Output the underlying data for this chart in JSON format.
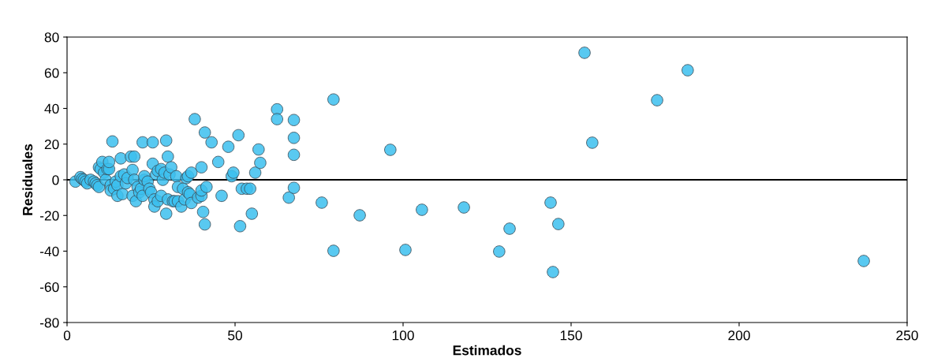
{
  "chart_data": {
    "type": "scatter",
    "xlabel": "Estimados",
    "ylabel": "Residuales",
    "xlim": [
      0,
      250
    ],
    "xticks": [
      0,
      50,
      100,
      150,
      200,
      250
    ],
    "ylim": [
      -80,
      80
    ],
    "yticks": [
      -80,
      -60,
      -40,
      -20,
      0,
      20,
      40,
      60,
      80
    ],
    "grid": false,
    "marker": "circle",
    "ref_lines": [
      {
        "axis": "y",
        "value": 0,
        "color": "#000000"
      }
    ],
    "series": [
      {
        "color": "#3cbfef",
        "x": [
          2.5,
          4,
          4.5,
          5,
          5.5,
          6,
          7,
          8,
          8.5,
          9,
          9.5,
          9.5,
          10,
          10.5,
          11,
          11.5,
          12,
          12.5,
          12.5,
          13,
          13,
          13.5,
          14,
          14.5,
          15,
          15,
          16,
          16,
          16.5,
          17,
          17.5,
          18,
          19,
          19.5,
          19.5,
          20,
          20,
          20.5,
          21,
          21.5,
          22,
          22.5,
          22.5,
          23,
          23,
          24,
          24.5,
          25,
          25.5,
          25.5,
          26,
          26,
          26.5,
          27,
          27,
          28,
          28,
          28.5,
          29,
          29.5,
          29.5,
          30,
          30,
          30.5,
          31,
          31.5,
          32,
          32.5,
          33,
          33,
          34,
          34.5,
          35,
          35.5,
          36,
          36,
          36.5,
          37,
          37,
          38,
          39,
          40,
          40,
          40,
          40.5,
          41,
          41,
          41.5,
          43,
          45,
          46,
          48,
          49,
          49.5,
          51,
          51.5,
          52,
          53.5,
          54.5,
          55,
          56,
          57,
          57.5,
          62.5,
          62.5,
          66,
          67.5,
          67.5,
          67.5,
          67.5,
          75.8,
          79.3,
          79.3,
          87.1,
          96.2,
          100.7,
          105.6,
          118.1,
          128.6,
          131.7,
          143.9,
          144.6,
          146.2,
          154,
          156.3,
          175.6,
          184.7,
          237.1
        ],
        "values": [
          -1,
          1.5,
          0.5,
          0,
          -1,
          -2,
          0,
          -1,
          -2,
          -3,
          -4,
          7,
          6,
          10,
          4,
          0,
          6,
          6,
          10,
          -3,
          -6,
          21.5,
          -5,
          -1,
          -3,
          -9,
          12,
          2,
          -8,
          3,
          -2,
          1,
          13,
          5.5,
          -9,
          0,
          13,
          -12,
          -4,
          -7,
          -5,
          -9,
          21,
          0,
          2,
          -1,
          -5,
          -7,
          21,
          9,
          -11,
          -15,
          3,
          5,
          -12,
          -9,
          6,
          0,
          4,
          22,
          -19,
          13,
          -11,
          3,
          7,
          -12,
          -12,
          2,
          -4,
          -12,
          -15,
          -5,
          -11,
          1,
          2,
          -7,
          -8,
          -13,
          4,
          34,
          -10,
          7,
          -9,
          -6,
          -18,
          -25,
          26.5,
          -4,
          21,
          10,
          -9,
          18.5,
          2,
          4,
          25,
          -26,
          -5,
          -5,
          -5,
          -19,
          4,
          17,
          9.5,
          39.5,
          34,
          -10,
          33.5,
          23.5,
          14,
          -4.5,
          -12.8,
          45,
          -39.8,
          -19.9,
          16.8,
          -39.3,
          -16.8,
          -15.5,
          -40.2,
          -27.4,
          -12.8,
          -51.7,
          -24.8,
          71.2,
          20.8,
          44.6,
          61.4,
          -45.5
        ]
      }
    ]
  }
}
